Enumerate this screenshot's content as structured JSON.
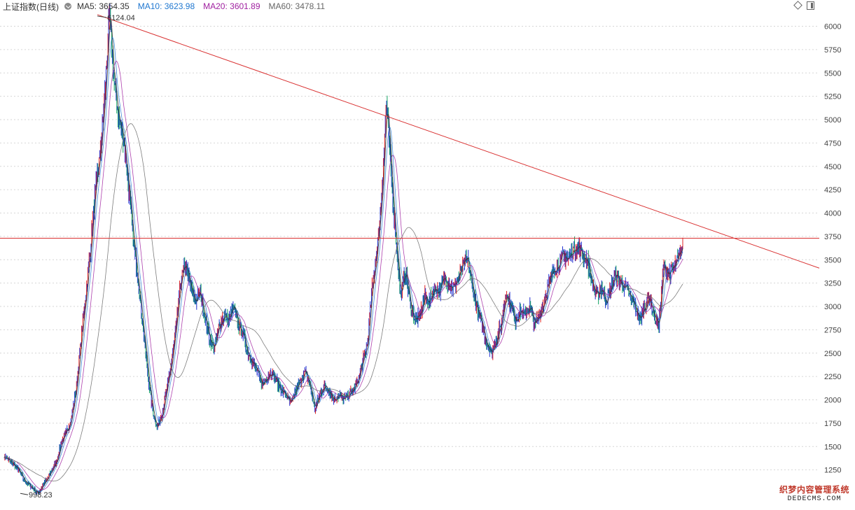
{
  "header": {
    "title": "上证指数(日线)",
    "ma5_label": "MA5: 3654.35",
    "ma10_label": "MA10: 3623.98",
    "ma20_label": "MA20: 3601.89",
    "ma60_label": "MA60: 3478.11"
  },
  "icons": [
    "collapse-icon",
    "diamond-icon",
    "window-icon"
  ],
  "colors": {
    "ma5": "#333333",
    "ma10": "#1f77d0",
    "ma20": "#a020a0",
    "ma60": "#666666",
    "trend_line": "#d93030",
    "candle_up": "#e02020",
    "candle_down": "#10a060",
    "candle_blue": "#2030d0"
  },
  "chart_data": {
    "type": "line",
    "title": "上证指数(日线)",
    "y_ticks": [
      "6000",
      "5750",
      "5500",
      "5250",
      "5000",
      "4750",
      "4500",
      "4250",
      "4000",
      "3750",
      "3500",
      "3250",
      "3000",
      "2750",
      "2500",
      "2250",
      "2000",
      "1750",
      "1500",
      "1250"
    ],
    "y_last_tick_partial": "50",
    "ylim": [
      1000,
      6200
    ],
    "grid": true,
    "annotations": {
      "high_label": "6124.04",
      "low_label": "998.23"
    },
    "horizontal_line": {
      "value": 3730
    },
    "trend_line": {
      "from_value": 6124.04,
      "via_value": 5178,
      "to_value": 3410
    },
    "series": [
      {
        "values": [
          1400,
          1350,
          1300,
          1250,
          1150,
          1100,
          1050,
          998,
          1080,
          1150,
          1250,
          1350,
          1550,
          1650,
          1800,
          2100,
          2600,
          3100,
          3600,
          4200,
          4600,
          5200,
          6124,
          5400,
          5000,
          4800,
          4300,
          3700,
          3300,
          2800,
          2300,
          1900,
          1700,
          1850,
          2100,
          2400,
          2800,
          3300,
          3450,
          3200,
          3050,
          3150,
          2900,
          2650,
          2550,
          2800,
          2900,
          2850,
          3000,
          2800,
          2700,
          2500,
          2400,
          2300,
          2150,
          2250,
          2300,
          2200,
          2100,
          2050,
          1950,
          2100,
          2200,
          2300,
          2150,
          1900,
          2050,
          2150,
          2100,
          2000,
          2050,
          2000,
          2050,
          2100,
          2200,
          2400,
          2600,
          3200,
          3600,
          4200,
          5178,
          4400,
          3700,
          3100,
          3400,
          3000,
          2850,
          2900,
          3100,
          3050,
          3200,
          3150,
          3300,
          3250,
          3200,
          3300,
          3450,
          3500,
          3200,
          2950,
          2800,
          2600,
          2500,
          2650,
          2800,
          3150,
          3000,
          2850,
          2950,
          2900,
          3000,
          2800,
          2900,
          3050,
          3250,
          3400,
          3450,
          3550,
          3500,
          3600,
          3650,
          3550,
          3500,
          3250,
          3100,
          3200,
          3050,
          3200,
          3350,
          3250,
          3200,
          3100,
          3000,
          2850,
          3000,
          3100,
          2900,
          2800,
          3450,
          3350,
          3400,
          3500,
          3650
        ]
      }
    ]
  },
  "watermark": {
    "cn": "织梦内容管理系统",
    "en": "DEDECMS.COM"
  }
}
